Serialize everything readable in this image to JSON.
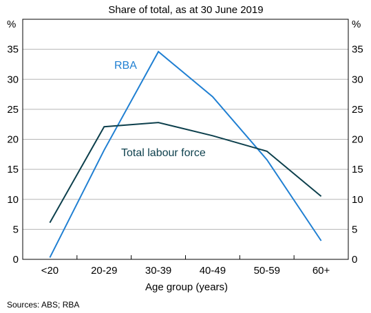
{
  "chart_data": {
    "type": "line",
    "subtitle": "Share of total, as at 30 June 2019",
    "xlabel": "Age group (years)",
    "y_unit_left": "%",
    "y_unit_right": "%",
    "categories": [
      "<20",
      "20-29",
      "30-39",
      "40-49",
      "50-59",
      "60+"
    ],
    "ylim": [
      0,
      40
    ],
    "yticks": [
      0,
      5,
      10,
      15,
      20,
      25,
      30,
      35
    ],
    "grid": true,
    "series": [
      {
        "name": "RBA",
        "color": "#1f7fd2",
        "values": [
          0.3,
          18.2,
          34.6,
          27.1,
          16.6,
          3.1
        ]
      },
      {
        "name": "Total labour force",
        "color": "#0c3f4c",
        "values": [
          6.1,
          22.1,
          22.8,
          20.6,
          18.0,
          10.5
        ]
      }
    ],
    "source": "Sources: ABS; RBA"
  }
}
